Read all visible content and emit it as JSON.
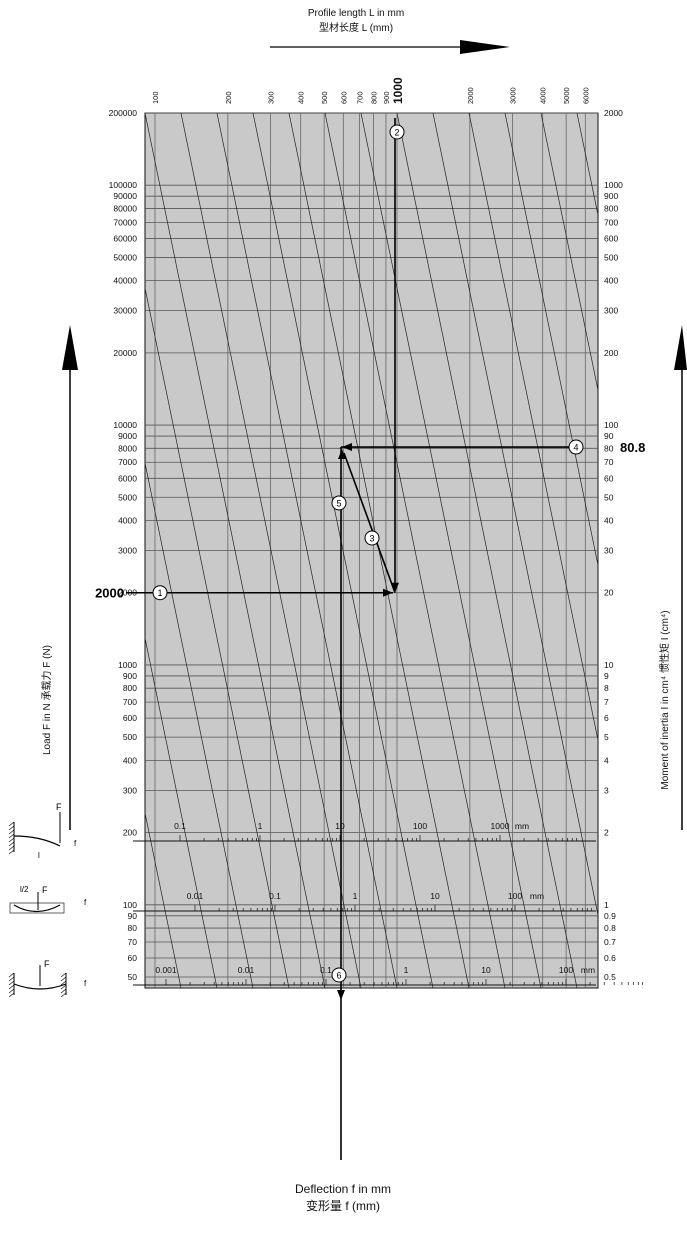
{
  "title": {
    "top_en": "Profile length L in mm",
    "top_cn": "型材长度 L (mm)",
    "left_en": "Load F in N",
    "left_cn": "承载力 F (N)",
    "right_en": "Moment of inertia I in cm⁴",
    "right_cn": "惯性矩 I (cm⁴)",
    "bottom_en": "Deflection f in mm",
    "bottom_cn": "变形量 f (mm)"
  },
  "colors": {
    "grid_bg": "#c9c9c9",
    "line": "#111111",
    "paper": "#ffffff"
  },
  "chart_data": {
    "type": "nomogram",
    "y_left_label": "Load F in N   承载力 F (N)",
    "y_left_ticks": [
      "200000",
      "100000",
      "90000",
      "80000",
      "70000",
      "60000",
      "50000",
      "40000",
      "30000",
      "20000",
      "10000",
      "9000",
      "8000",
      "7000",
      "6000",
      "5000",
      "4000",
      "3000",
      "2000",
      "1000",
      "900",
      "800",
      "700",
      "600",
      "500",
      "400",
      "300",
      "200",
      "100",
      "90",
      "80",
      "70",
      "60",
      "50"
    ],
    "y_left_range": [
      45,
      200000
    ],
    "y_right_label": "Moment of inertia I in cm⁴   惯性矩 I (cm⁴)",
    "y_right_ticks": [
      "2000",
      "1000",
      "900",
      "800",
      "700",
      "600",
      "500",
      "400",
      "300",
      "200",
      "100",
      "90",
      "80",
      "70",
      "60",
      "50",
      "40",
      "30",
      "20",
      "10",
      "9",
      "8",
      "7",
      "6",
      "5",
      "4",
      "3",
      "2",
      "1",
      "0.9",
      "0.8",
      "0.7",
      "0.6",
      "0.5"
    ],
    "top_axis_label": "Profile length L in mm",
    "top_ticks": [
      "100",
      "200",
      "300",
      "400",
      "500",
      "600",
      "700",
      "800",
      "900",
      "1000",
      "2000",
      "3000",
      "4000",
      "5000",
      "6000"
    ],
    "bottom_scales": [
      {
        "case": "cantilever",
        "ticks": [
          "0.1",
          "1",
          "10",
          "100",
          "1000"
        ],
        "unit": "mm"
      },
      {
        "case": "simply supported, centre load",
        "ticks": [
          "0.01",
          "0.1",
          "1",
          "10",
          "100"
        ],
        "unit": "mm"
      },
      {
        "case": "fixed both ends, centre load",
        "ticks": [
          "0.001",
          "0.01",
          "0.1",
          "1",
          "10",
          "100"
        ],
        "unit": "mm"
      }
    ],
    "example": {
      "load_label": "2000",
      "length_label": "1000",
      "inertia_label": "80.8",
      "steps": [
        "1",
        "2",
        "3",
        "4",
        "5",
        "6"
      ]
    }
  },
  "sketches": {
    "force": "F",
    "deflection": "f",
    "length": "l",
    "half": "l/2"
  }
}
